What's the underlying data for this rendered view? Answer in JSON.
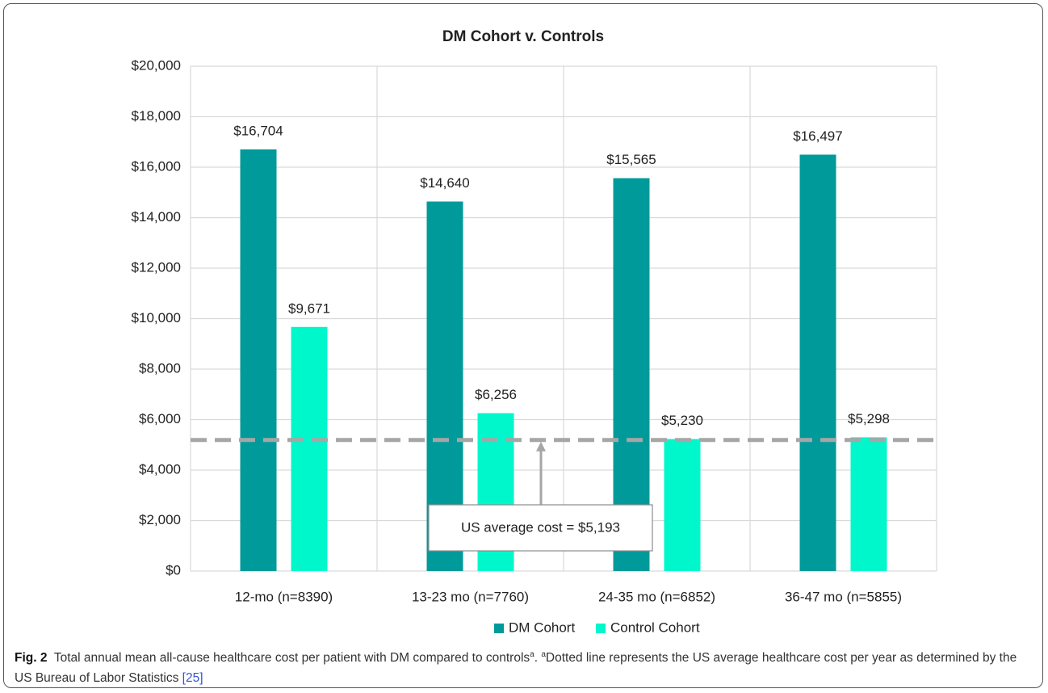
{
  "chart_data": {
    "type": "bar",
    "title": "DM Cohort v. Controls",
    "categories": [
      "12-mo (n=8390)",
      "13-23 mo (n=7760)",
      "24-35 mo (n=6852)",
      "36-47 mo (n=5855)"
    ],
    "series": [
      {
        "name": "DM Cohort",
        "color": "#009a9a",
        "values": [
          16704,
          14640,
          15565,
          16497
        ],
        "value_labels": [
          "$16,704",
          "$14,640",
          "$15,565",
          "$16,497"
        ]
      },
      {
        "name": "Control Cohort",
        "color": "#00f7cc",
        "values": [
          9671,
          6256,
          5230,
          5298
        ],
        "value_labels": [
          "$9,671",
          "$6,256",
          "$5,230",
          "$5,298"
        ]
      }
    ],
    "ylim": [
      0,
      20000
    ],
    "yticks": [
      {
        "value": 0,
        "label": "$0"
      },
      {
        "value": 2000,
        "label": "$2,000"
      },
      {
        "value": 4000,
        "label": "$4,000"
      },
      {
        "value": 6000,
        "label": "$6,000"
      },
      {
        "value": 8000,
        "label": "$8,000"
      },
      {
        "value": 10000,
        "label": "$10,000"
      },
      {
        "value": 12000,
        "label": "$12,000"
      },
      {
        "value": 14000,
        "label": "$14,000"
      },
      {
        "value": 16000,
        "label": "$16,000"
      },
      {
        "value": 18000,
        "label": "$18,000"
      },
      {
        "value": 20000,
        "label": "$20,000"
      }
    ],
    "grid": true,
    "legend": "bottom",
    "reference_line": {
      "value": 5193,
      "label": "US average cost = $5,193",
      "color": "#a6a6a6"
    }
  },
  "caption": {
    "label": "Fig. 2",
    "text": "Total annual mean all-cause healthcare cost per patient with DM compared to controls",
    "sup1": "a",
    "sep": ". ",
    "sup2": "a",
    "note": "Dotted line represents the US average healthcare cost per year as determined by the US Bureau of Labor Statistics ",
    "ref": "[25]"
  }
}
